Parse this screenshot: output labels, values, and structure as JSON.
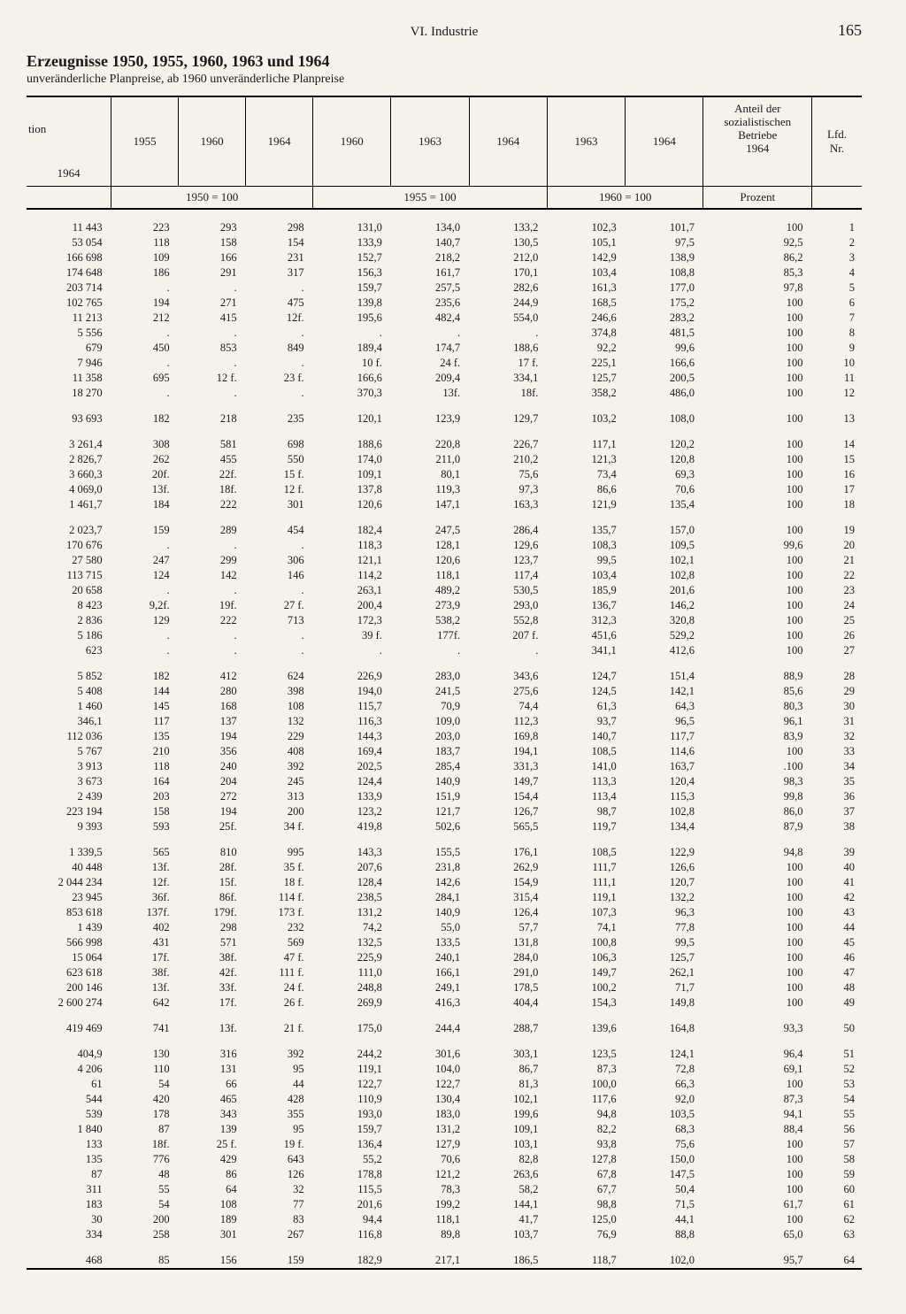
{
  "chapter": "VI. Industrie",
  "pagenum": "165",
  "title": "Erzeugnisse 1950, 1955, 1960, 1963 und 1964",
  "subtitle": "unveränderliche Planpreise, ab 1960 unveränderliche Planpreise",
  "headers": {
    "tion": "tion",
    "y1964": "1964",
    "y1955": "1955",
    "y1960": "1960",
    "y1960b": "1960",
    "y1963": "1963",
    "y1964b": "1964",
    "y1963b": "1963",
    "y1964c": "1964",
    "y1964d": "1964",
    "anteil1": "Anteil der",
    "anteil2": "sozialistischen",
    "anteil3": "Betriebe",
    "anteil4": "1964",
    "lfd": "Lfd.",
    "nr": "Nr.",
    "base1950": "1950 = 100",
    "base1955": "1955 = 100",
    "base1960": "1960 = 100",
    "prozent": "Prozent"
  },
  "rows": [
    [
      "11 443",
      "223",
      "293",
      "298",
      "131,0",
      "134,0",
      "133,2",
      "102,3",
      "101,7",
      "100",
      "1"
    ],
    [
      "53 054",
      "118",
      "158",
      "154",
      "133,9",
      "140,7",
      "130,5",
      "105,1",
      "97,5",
      "92,5",
      "2"
    ],
    [
      "166 698",
      "109",
      "166",
      "231",
      "152,7",
      "218,2",
      "212,0",
      "142,9",
      "138,9",
      "86,2",
      "3"
    ],
    [
      "174 648",
      "186",
      "291",
      "317",
      "156,3",
      "161,7",
      "170,1",
      "103,4",
      "108,8",
      "85,3",
      "4"
    ],
    [
      "203 714",
      ".",
      ".",
      ".",
      "159,7",
      "257,5",
      "282,6",
      "161,3",
      "177,0",
      "97,8",
      "5"
    ],
    [
      "102 765",
      "194",
      "271",
      "475",
      "139,8",
      "235,6",
      "244,9",
      "168,5",
      "175,2",
      "100",
      "6"
    ],
    [
      "11 213",
      "212",
      "415",
      "12f.",
      "195,6",
      "482,4",
      "554,0",
      "246,6",
      "283,2",
      "100",
      "7"
    ],
    [
      "5 556",
      ".",
      ".",
      ".",
      ".",
      ".",
      ".",
      "374,8",
      "481,5",
      "100",
      "8"
    ],
    [
      "679",
      "450",
      "853",
      "849",
      "189,4",
      "174,7",
      "188,6",
      "92,2",
      "99,6",
      "100",
      "9"
    ],
    [
      "7 946",
      ".",
      ".",
      ".",
      "10 f.",
      "24 f.",
      "17 f.",
      "225,1",
      "166,6",
      "100",
      "10"
    ],
    [
      "11 358",
      "695",
      "12 f.",
      "23 f.",
      "166,6",
      "209,4",
      "334,1",
      "125,7",
      "200,5",
      "100",
      "11"
    ],
    [
      "18 270",
      ".",
      ".",
      ".",
      "370,3",
      "13f.",
      "18f.",
      "358,2",
      "486,0",
      "100",
      "12"
    ],
    [
      "93 693",
      "182",
      "218",
      "235",
      "120,1",
      "123,9",
      "129,7",
      "103,2",
      "108,0",
      "100",
      "13"
    ],
    [
      "3 261,4",
      "308",
      "581",
      "698",
      "188,6",
      "220,8",
      "226,7",
      "117,1",
      "120,2",
      "100",
      "14"
    ],
    [
      "2 826,7",
      "262",
      "455",
      "550",
      "174,0",
      "211,0",
      "210,2",
      "121,3",
      "120,8",
      "100",
      "15"
    ],
    [
      "3 660,3",
      "20f.",
      "22f.",
      "15 f.",
      "109,1",
      "80,1",
      "75,6",
      "73,4",
      "69,3",
      "100",
      "16"
    ],
    [
      "4 069,0",
      "13f.",
      "18f.",
      "12 f.",
      "137,8",
      "119,3",
      "97,3",
      "86,6",
      "70,6",
      "100",
      "17"
    ],
    [
      "1 461,7",
      "184",
      "222",
      "301",
      "120,6",
      "147,1",
      "163,3",
      "121,9",
      "135,4",
      "100",
      "18"
    ],
    [
      "2 023,7",
      "159",
      "289",
      "454",
      "182,4",
      "247,5",
      "286,4",
      "135,7",
      "157,0",
      "100",
      "19"
    ],
    [
      "170 676",
      ".",
      ".",
      ".",
      "118,3",
      "128,1",
      "129,6",
      "108,3",
      "109,5",
      "99,6",
      "20"
    ],
    [
      "27 580",
      "247",
      "299",
      "306",
      "121,1",
      "120,6",
      "123,7",
      "99,5",
      "102,1",
      "100",
      "21"
    ],
    [
      "113 715",
      "124",
      "142",
      "146",
      "114,2",
      "118,1",
      "117,4",
      "103,4",
      "102,8",
      "100",
      "22"
    ],
    [
      "20 658",
      ".",
      ".",
      ".",
      "263,1",
      "489,2",
      "530,5",
      "185,9",
      "201,6",
      "100",
      "23"
    ],
    [
      "8 423",
      "9,2f.",
      "19f.",
      "27 f.",
      "200,4",
      "273,9",
      "293,0",
      "136,7",
      "146,2",
      "100",
      "24"
    ],
    [
      "2 836",
      "129",
      "222",
      "713",
      "172,3",
      "538,2",
      "552,8",
      "312,3",
      "320,8",
      "100",
      "25"
    ],
    [
      "5 186",
      ".",
      ".",
      ".",
      "39 f.",
      "177f.",
      "207 f.",
      "451,6",
      "529,2",
      "100",
      "26"
    ],
    [
      "623",
      ".",
      ".",
      ".",
      ".",
      ".",
      ".",
      "341,1",
      "412,6",
      "100",
      "27"
    ],
    [
      "5 852",
      "182",
      "412",
      "624",
      "226,9",
      "283,0",
      "343,6",
      "124,7",
      "151,4",
      "88,9",
      "28"
    ],
    [
      "5 408",
      "144",
      "280",
      "398",
      "194,0",
      "241,5",
      "275,6",
      "124,5",
      "142,1",
      "85,6",
      "29"
    ],
    [
      "1 460",
      "145",
      "168",
      "108",
      "115,7",
      "70,9",
      "74,4",
      "61,3",
      "64,3",
      "80,3",
      "30"
    ],
    [
      "346,1",
      "117",
      "137",
      "132",
      "116,3",
      "109,0",
      "112,3",
      "93,7",
      "96,5",
      "96,1",
      "31"
    ],
    [
      "112 036",
      "135",
      "194",
      "229",
      "144,3",
      "203,0",
      "169,8",
      "140,7",
      "117,7",
      "83,9",
      "32"
    ],
    [
      "5 767",
      "210",
      "356",
      "408",
      "169,4",
      "183,7",
      "194,1",
      "108,5",
      "114,6",
      "100",
      "33"
    ],
    [
      "3 913",
      "118",
      "240",
      "392",
      "202,5",
      "285,4",
      "331,3",
      "141,0",
      "163,7",
      ".100",
      "34"
    ],
    [
      "3 673",
      "164",
      "204",
      "245",
      "124,4",
      "140,9",
      "149,7",
      "113,3",
      "120,4",
      "98,3",
      "35"
    ],
    [
      "2 439",
      "203",
      "272",
      "313",
      "133,9",
      "151,9",
      "154,4",
      "113,4",
      "115,3",
      "99,8",
      "36"
    ],
    [
      "223 194",
      "158",
      "194",
      "200",
      "123,2",
      "121,7",
      "126,7",
      "98,7",
      "102,8",
      "86,0",
      "37"
    ],
    [
      "9 393",
      "593",
      "25f.",
      "34 f.",
      "419,8",
      "502,6",
      "565,5",
      "119,7",
      "134,4",
      "87,9",
      "38"
    ],
    [
      "1 339,5",
      "565",
      "810",
      "995",
      "143,3",
      "155,5",
      "176,1",
      "108,5",
      "122,9",
      "94,8",
      "39"
    ],
    [
      "40 448",
      "13f.",
      "28f.",
      "35 f.",
      "207,6",
      "231,8",
      "262,9",
      "111,7",
      "126,6",
      "100",
      "40"
    ],
    [
      "2 044 234",
      "12f.",
      "15f.",
      "18 f.",
      "128,4",
      "142,6",
      "154,9",
      "111,1",
      "120,7",
      "100",
      "41"
    ],
    [
      "23 945",
      "36f.",
      "86f.",
      "114 f.",
      "238,5",
      "284,1",
      "315,4",
      "119,1",
      "132,2",
      "100",
      "42"
    ],
    [
      "853 618",
      "137f.",
      "179f.",
      "173 f.",
      "131,2",
      "140,9",
      "126,4",
      "107,3",
      "96,3",
      "100",
      "43"
    ],
    [
      "1 439",
      "402",
      "298",
      "232",
      "74,2",
      "55,0",
      "57,7",
      "74,1",
      "77,8",
      "100",
      "44"
    ],
    [
      "566 998",
      "431",
      "571",
      "569",
      "132,5",
      "133,5",
      "131,8",
      "100,8",
      "99,5",
      "100",
      "45"
    ],
    [
      "15 064",
      "17f.",
      "38f.",
      "47 f.",
      "225,9",
      "240,1",
      "284,0",
      "106,3",
      "125,7",
      "100",
      "46"
    ],
    [
      "623 618",
      "38f.",
      "42f.",
      "111 f.",
      "111,0",
      "166,1",
      "291,0",
      "149,7",
      "262,1",
      "100",
      "47"
    ],
    [
      "200 146",
      "13f.",
      "33f.",
      "24 f.",
      "248,8",
      "249,1",
      "178,5",
      "100,2",
      "71,7",
      "100",
      "48"
    ],
    [
      "2 600 274",
      "642",
      "17f.",
      "26 f.",
      "269,9",
      "416,3",
      "404,4",
      "154,3",
      "149,8",
      "100",
      "49"
    ],
    [
      "419 469",
      "741",
      "13f.",
      "21 f.",
      "175,0",
      "244,4",
      "288,7",
      "139,6",
      "164,8",
      "93,3",
      "50"
    ],
    [
      "404,9",
      "130",
      "316",
      "392",
      "244,2",
      "301,6",
      "303,1",
      "123,5",
      "124,1",
      "96,4",
      "51"
    ],
    [
      "4 206",
      "110",
      "131",
      "95",
      "119,1",
      "104,0",
      "86,7",
      "87,3",
      "72,8",
      "69,1",
      "52"
    ],
    [
      "61",
      "54",
      "66",
      "44",
      "122,7",
      "122,7",
      "81,3",
      "100,0",
      "66,3",
      "100",
      "53"
    ],
    [
      "544",
      "420",
      "465",
      "428",
      "110,9",
      "130,4",
      "102,1",
      "117,6",
      "92,0",
      "87,3",
      "54"
    ],
    [
      "539",
      "178",
      "343",
      "355",
      "193,0",
      "183,0",
      "199,6",
      "94,8",
      "103,5",
      "94,1",
      "55"
    ],
    [
      "1 840",
      "87",
      "139",
      "95",
      "159,7",
      "131,2",
      "109,1",
      "82,2",
      "68,3",
      "88,4",
      "56"
    ],
    [
      "133",
      "18f.",
      "25 f.",
      "19 f.",
      "136,4",
      "127,9",
      "103,1",
      "93,8",
      "75,6",
      "100",
      "57"
    ],
    [
      "135",
      "776",
      "429",
      "643",
      "55,2",
      "70,6",
      "82,8",
      "127,8",
      "150,0",
      "100",
      "58"
    ],
    [
      "87",
      "48",
      "86",
      "126",
      "178,8",
      "121,2",
      "263,6",
      "67,8",
      "147,5",
      "100",
      "59"
    ],
    [
      "311",
      "55",
      "64",
      "32",
      "115,5",
      "78,3",
      "58,2",
      "67,7",
      "50,4",
      "100",
      "60"
    ],
    [
      "183",
      "54",
      "108",
      "77",
      "201,6",
      "199,2",
      "144,1",
      "98,8",
      "71,5",
      "61,7",
      "61"
    ],
    [
      "30",
      "200",
      "189",
      "83",
      "94,4",
      "118,1",
      "41,7",
      "125,0",
      "44,1",
      "100",
      "62"
    ],
    [
      "334",
      "258",
      "301",
      "267",
      "116,8",
      "89,8",
      "103,7",
      "76,9",
      "88,8",
      "65,0",
      "63"
    ],
    [
      "468",
      "85",
      "156",
      "159",
      "182,9",
      "217,1",
      "186,5",
      "118,7",
      "102,0",
      "95,7",
      "64"
    ]
  ],
  "groups_after": [
    12,
    13,
    18,
    27,
    38,
    49,
    50,
    63
  ],
  "colors": {
    "bg": "#f5f2eb",
    "fg": "#1a1a1a",
    "rule": "#000000"
  }
}
